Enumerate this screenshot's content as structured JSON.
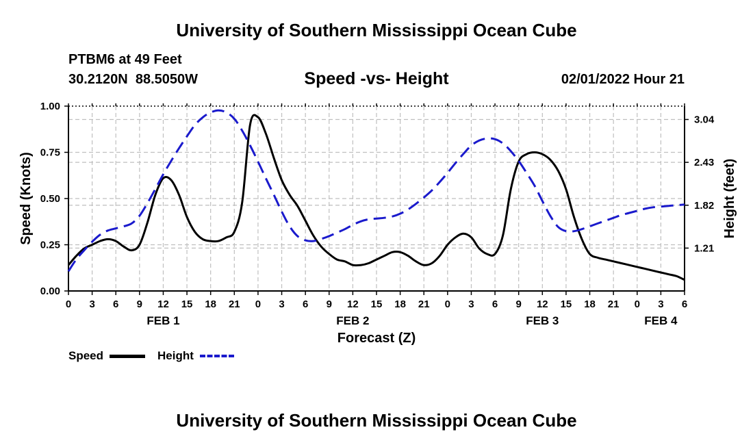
{
  "header": {
    "title_top": "University of Southern Mississippi Ocean Cube",
    "station": "PTBM6 at 49 Feet",
    "coords": "30.2120N  88.5050W",
    "chart_title": "Speed -vs- Height",
    "datetime": "02/01/2022 Hour 21",
    "title_bottom": "University of Southern Mississippi Ocean Cube"
  },
  "legend": {
    "speed_label": "Speed",
    "height_label": "Height"
  },
  "chart_data": {
    "type": "line",
    "title": "Speed -vs- Height",
    "xlabel": "Forecast (Z)",
    "ylabel": "Speed (Knots)",
    "y2label": "Height (feet)",
    "x_ticks": [
      "0",
      "3",
      "6",
      "9",
      "12",
      "15",
      "18",
      "21",
      "0",
      "3",
      "6",
      "9",
      "12",
      "15",
      "18",
      "21",
      "0",
      "3",
      "6",
      "9",
      "12",
      "15",
      "18",
      "21",
      "0",
      "3",
      "6"
    ],
    "day_labels": [
      {
        "label": "FEB 1",
        "hour": 12
      },
      {
        "label": "FEB 2",
        "hour": 36
      },
      {
        "label": "FEB 3",
        "hour": 60
      },
      {
        "label": "FEB 4",
        "hour": 75
      }
    ],
    "xlim": [
      0,
      78
    ],
    "ylim": [
      0,
      1.0
    ],
    "y_ticks": [
      "0.00",
      "0.25",
      "0.50",
      "0.75",
      "1.00"
    ],
    "y2lim": [
      0.6,
      3.23
    ],
    "y2_ticks": [
      "1.21",
      "1.82",
      "2.43",
      "3.04"
    ],
    "colors": {
      "speed": "#000000",
      "height": "#1a1acc",
      "grid": "#bfbfbf"
    },
    "series": [
      {
        "name": "Speed",
        "axis": "left",
        "x": [
          0,
          1,
          2,
          3,
          4,
          5,
          6,
          7,
          8,
          9,
          10,
          11,
          12,
          13,
          14,
          15,
          16,
          17,
          18,
          19,
          20,
          21,
          22,
          23,
          24,
          25,
          26,
          27,
          28,
          29,
          30,
          31,
          32,
          33,
          34,
          35,
          36,
          37,
          38,
          39,
          40,
          41,
          42,
          43,
          44,
          45,
          46,
          47,
          48,
          49,
          50,
          51,
          52,
          53,
          54,
          55,
          56,
          57,
          58,
          59,
          60,
          61,
          62,
          63,
          64,
          65,
          66,
          67,
          68,
          69,
          70,
          71,
          72,
          73,
          74,
          75,
          76,
          77,
          78
        ],
        "values": [
          0.14,
          0.19,
          0.23,
          0.25,
          0.27,
          0.28,
          0.27,
          0.24,
          0.22,
          0.25,
          0.37,
          0.52,
          0.61,
          0.6,
          0.52,
          0.4,
          0.32,
          0.28,
          0.27,
          0.27,
          0.29,
          0.32,
          0.48,
          0.9,
          0.94,
          0.85,
          0.72,
          0.6,
          0.52,
          0.46,
          0.38,
          0.3,
          0.24,
          0.2,
          0.17,
          0.16,
          0.14,
          0.14,
          0.15,
          0.17,
          0.19,
          0.21,
          0.21,
          0.19,
          0.16,
          0.14,
          0.15,
          0.19,
          0.25,
          0.29,
          0.31,
          0.29,
          0.23,
          0.2,
          0.2,
          0.3,
          0.55,
          0.7,
          0.74,
          0.75,
          0.74,
          0.71,
          0.65,
          0.55,
          0.4,
          0.28,
          0.2,
          0.18,
          0.17,
          0.16,
          0.15,
          0.14,
          0.13,
          0.12,
          0.11,
          0.1,
          0.09,
          0.08,
          0.06
        ]
      },
      {
        "name": "Height",
        "axis": "right",
        "x": [
          0,
          1,
          2,
          3,
          4,
          5,
          6,
          7,
          8,
          9,
          10,
          11,
          12,
          13,
          14,
          15,
          16,
          17,
          18,
          19,
          20,
          21,
          22,
          23,
          24,
          25,
          26,
          27,
          28,
          29,
          30,
          31,
          32,
          33,
          34,
          35,
          36,
          37,
          38,
          39,
          40,
          41,
          42,
          43,
          44,
          45,
          46,
          47,
          48,
          49,
          50,
          51,
          52,
          53,
          54,
          55,
          56,
          57,
          58,
          59,
          60,
          61,
          62,
          63,
          64,
          65,
          66,
          67,
          68,
          69,
          70,
          71,
          72,
          73,
          74,
          75,
          76,
          77,
          78
        ],
        "values": [
          0.88,
          1.05,
          1.18,
          1.3,
          1.4,
          1.46,
          1.49,
          1.52,
          1.56,
          1.67,
          1.85,
          2.05,
          2.26,
          2.45,
          2.63,
          2.8,
          2.96,
          3.07,
          3.14,
          3.17,
          3.14,
          3.05,
          2.88,
          2.67,
          2.44,
          2.2,
          1.97,
          1.73,
          1.52,
          1.38,
          1.32,
          1.31,
          1.34,
          1.38,
          1.43,
          1.48,
          1.54,
          1.59,
          1.62,
          1.63,
          1.64,
          1.66,
          1.7,
          1.76,
          1.84,
          1.93,
          2.03,
          2.15,
          2.28,
          2.42,
          2.55,
          2.67,
          2.74,
          2.77,
          2.76,
          2.7,
          2.59,
          2.45,
          2.28,
          2.1,
          1.88,
          1.67,
          1.51,
          1.45,
          1.45,
          1.48,
          1.52,
          1.56,
          1.6,
          1.64,
          1.68,
          1.71,
          1.74,
          1.77,
          1.79,
          1.8,
          1.81,
          1.82,
          1.83
        ]
      }
    ]
  }
}
